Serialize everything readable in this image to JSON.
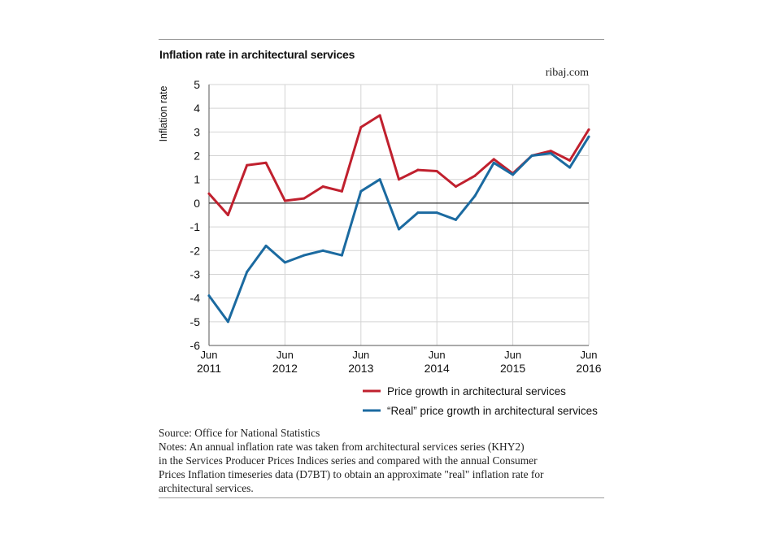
{
  "title": "Inflation rate in architectural services",
  "credit": "ribaj.com",
  "source": "Source: Office for National Statistics",
  "notes": [
    "Notes: An annual inflation rate was taken from architectural services series (KHY2)",
    "in the Services Producer Prices Indices series and compared with the annual Consumer",
    "Prices Inflation timeseries data (D7BT) to obtain an approximate \"real\" inflation rate for",
    "architectural services."
  ],
  "chart_data": {
    "type": "line",
    "title": "Inflation rate in architectural services",
    "ylabel": "Inflation rate",
    "xlabel": "",
    "ylim": [
      -6,
      5
    ],
    "yticks": [
      5,
      4,
      3,
      2,
      1,
      0,
      -1,
      -2,
      -3,
      -4,
      -5,
      -6
    ],
    "grid": true,
    "legend_position": "bottom-right",
    "x_tick_labels": [
      {
        "month": "Jun",
        "year": "2011"
      },
      {
        "month": "Jun",
        "year": "2012"
      },
      {
        "month": "Jun",
        "year": "2013"
      },
      {
        "month": "Jun",
        "year": "2014"
      },
      {
        "month": "Jun",
        "year": "2015"
      },
      {
        "month": "Jun",
        "year": "2016"
      }
    ],
    "x": [
      "2011-06",
      "2011-09",
      "2011-12",
      "2012-03",
      "2012-06",
      "2012-09",
      "2012-12",
      "2013-03",
      "2013-06",
      "2013-09",
      "2013-12",
      "2014-03",
      "2014-06",
      "2014-09",
      "2014-12",
      "2015-03",
      "2015-06",
      "2015-09",
      "2015-12",
      "2016-03",
      "2016-06"
    ],
    "series": [
      {
        "name": "Price growth in architectural services",
        "color": "#c0202e",
        "values": [
          0.4,
          -0.5,
          1.6,
          1.7,
          0.1,
          0.2,
          0.7,
          0.5,
          3.2,
          3.7,
          1.0,
          1.4,
          1.35,
          0.7,
          1.15,
          1.85,
          1.25,
          2.0,
          2.2,
          1.8,
          3.1
        ]
      },
      {
        "name": "“Real” price growth in architectural services",
        "color": "#1b6aa0",
        "values": [
          -3.9,
          -5.0,
          -2.9,
          -1.8,
          -2.5,
          -2.2,
          -2.0,
          -2.2,
          0.5,
          1.0,
          -1.1,
          -0.4,
          -0.4,
          -0.7,
          0.3,
          1.7,
          1.2,
          2.0,
          2.1,
          1.5,
          2.8
        ]
      }
    ]
  }
}
